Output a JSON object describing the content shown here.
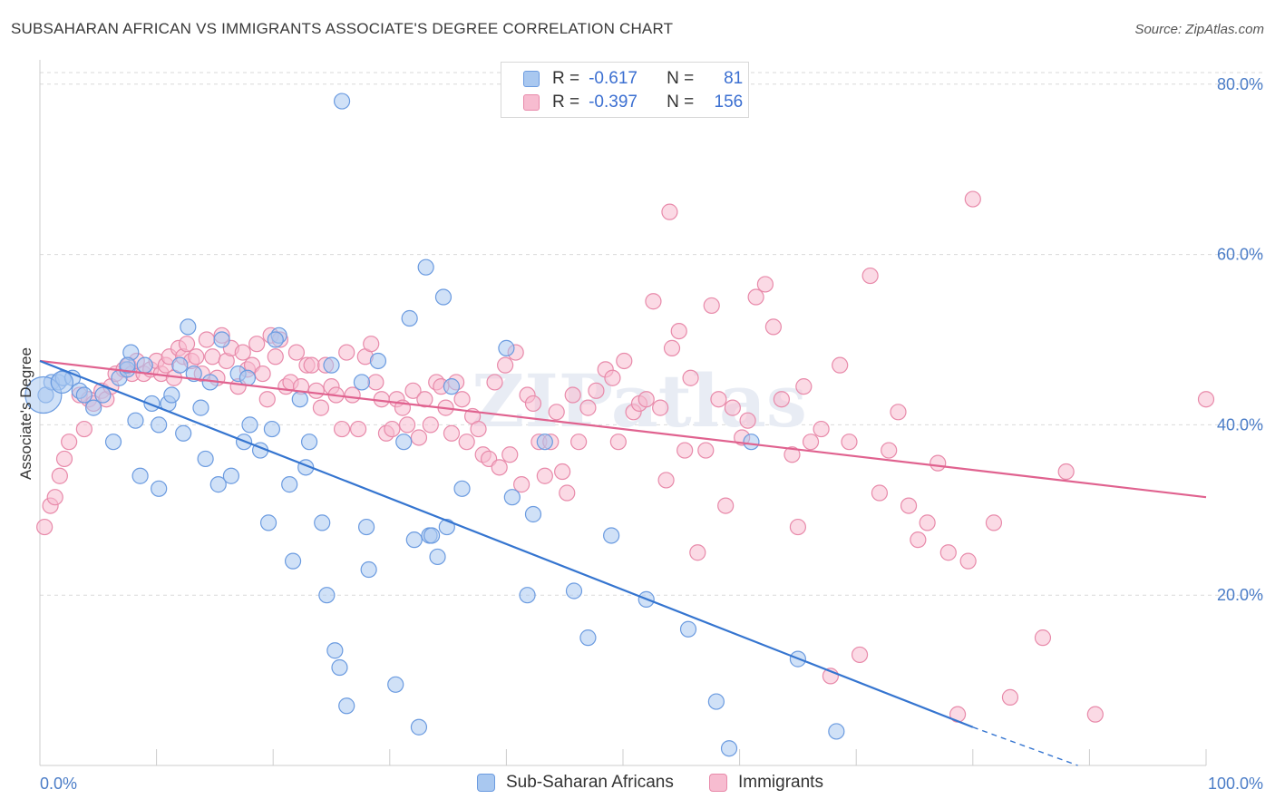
{
  "header": {
    "title": "SUBSAHARAN AFRICAN VS IMMIGRANTS ASSOCIATE'S DEGREE CORRELATION CHART",
    "source": "Source: ZipAtlas.com"
  },
  "legend": {
    "rows": [
      {
        "r_label": "R =",
        "r_value": "-0.617",
        "n_label": "N =",
        "n_value": "81"
      },
      {
        "r_label": "R =",
        "r_value": "-0.397",
        "n_label": "N =",
        "n_value": "156"
      }
    ]
  },
  "colors": {
    "blue_fill": "#a9c8f0",
    "blue_stroke": "#6b9be0",
    "blue_line": "#3575d0",
    "pink_fill": "#f7bcd0",
    "pink_stroke": "#e88aaa",
    "pink_line": "#e0628f",
    "grid": "#d9d9d9",
    "tick": "#4a7cc7"
  },
  "watermark": "ZIPatlas",
  "chart_data": {
    "type": "scatter",
    "title": "SUBSAHARAN AFRICAN VS IMMIGRANTS ASSOCIATE'S DEGREE CORRELATION CHART",
    "xlabel": "",
    "ylabel": "Associate's Degree",
    "xlim": [
      0,
      100
    ],
    "ylim": [
      0,
      82
    ],
    "x_ticks": [
      {
        "value": 0,
        "label": "0.0%"
      },
      {
        "value": 100,
        "label": "100.0%"
      }
    ],
    "y_ticks": [
      {
        "value": 20,
        "label": "20.0%"
      },
      {
        "value": 40,
        "label": "40.0%"
      },
      {
        "value": 60,
        "label": "60.0%"
      },
      {
        "value": 80,
        "label": "80.0%"
      }
    ],
    "grid": true,
    "legend_position": "top-center",
    "series": [
      {
        "name": "Sub-Saharan Africans",
        "r": -0.617,
        "n": 81,
        "trend": {
          "x0": 0,
          "y0": 47.5,
          "x1": 80,
          "y1": 4.5,
          "dashed_to_x": 89,
          "dashed_to_y": 0
        },
        "points": [
          [
            0.5,
            43.5
          ],
          [
            1,
            45
          ],
          [
            1.6,
            45
          ],
          [
            2,
            45.5
          ],
          [
            2.8,
            45.5
          ],
          [
            3.4,
            44
          ],
          [
            3.8,
            43.5
          ],
          [
            4.6,
            42
          ],
          [
            5.4,
            43.5
          ],
          [
            6.3,
            38
          ],
          [
            6.8,
            45.5
          ],
          [
            7.5,
            46.5
          ],
          [
            7.8,
            48.5
          ],
          [
            7.5,
            47
          ],
          [
            8.2,
            40.5
          ],
          [
            8.6,
            34
          ],
          [
            9,
            47
          ],
          [
            9.6,
            42.5
          ],
          [
            10.2,
            40
          ],
          [
            10.2,
            32.5
          ],
          [
            11,
            42.5
          ],
          [
            11.3,
            43.5
          ],
          [
            12,
            47
          ],
          [
            12.3,
            39
          ],
          [
            12.7,
            51.5
          ],
          [
            13.2,
            46
          ],
          [
            13.8,
            42
          ],
          [
            14.2,
            36
          ],
          [
            14.6,
            45
          ],
          [
            15.3,
            33
          ],
          [
            15.6,
            50
          ],
          [
            16.4,
            34
          ],
          [
            17,
            46
          ],
          [
            17.5,
            38
          ],
          [
            17.8,
            45.5
          ],
          [
            18,
            40
          ],
          [
            18.9,
            37
          ],
          [
            19.6,
            28.5
          ],
          [
            19.9,
            39.5
          ],
          [
            20.5,
            50.5
          ],
          [
            20.2,
            50
          ],
          [
            21.4,
            33
          ],
          [
            21.7,
            24
          ],
          [
            22.3,
            43
          ],
          [
            22.8,
            35
          ],
          [
            23.1,
            38
          ],
          [
            24.2,
            28.5
          ],
          [
            24.6,
            20
          ],
          [
            25,
            47
          ],
          [
            25.3,
            13.5
          ],
          [
            25.7,
            11.5
          ],
          [
            25.9,
            78
          ],
          [
            26.3,
            7
          ],
          [
            27.6,
            45
          ],
          [
            28,
            28
          ],
          [
            28.2,
            23
          ],
          [
            29,
            47.5
          ],
          [
            30.5,
            9.5
          ],
          [
            31.2,
            38
          ],
          [
            31.7,
            52.5
          ],
          [
            32.1,
            26.5
          ],
          [
            32.5,
            4.5
          ],
          [
            33.1,
            58.5
          ],
          [
            33.4,
            27
          ],
          [
            33.6,
            27
          ],
          [
            34.1,
            24.5
          ],
          [
            34.6,
            55
          ],
          [
            34.9,
            28
          ],
          [
            35.3,
            44.5
          ],
          [
            36.2,
            32.5
          ],
          [
            40,
            49
          ],
          [
            40.5,
            31.5
          ],
          [
            41.8,
            20
          ],
          [
            42.3,
            29.5
          ],
          [
            43.3,
            38
          ],
          [
            45.8,
            20.5
          ],
          [
            47,
            15
          ],
          [
            49,
            27
          ],
          [
            52,
            19.5
          ],
          [
            55.6,
            16
          ],
          [
            58,
            7.5
          ],
          [
            59.1,
            2
          ],
          [
            61,
            38
          ],
          [
            65,
            12.5
          ],
          [
            68.3,
            4
          ]
        ],
        "big_points": [
          [
            0.3,
            43.5
          ],
          [
            1.9,
            45
          ]
        ]
      },
      {
        "name": "Immigrants",
        "r": -0.397,
        "n": 156,
        "trend": {
          "x0": 0,
          "y0": 47.5,
          "x1": 100,
          "y1": 31.5
        },
        "points": [
          [
            0.4,
            28
          ],
          [
            0.9,
            30.5
          ],
          [
            1.3,
            31.5
          ],
          [
            1.7,
            34
          ],
          [
            2.1,
            36
          ],
          [
            2.5,
            38
          ],
          [
            3.4,
            43.5
          ],
          [
            3.8,
            39.5
          ],
          [
            4.2,
            43
          ],
          [
            4.6,
            42.5
          ],
          [
            5.3,
            44
          ],
          [
            5.7,
            43
          ],
          [
            6.1,
            44.5
          ],
          [
            6.5,
            46
          ],
          [
            7.2,
            46.5
          ],
          [
            7.6,
            47
          ],
          [
            7.9,
            46
          ],
          [
            8.3,
            47.5
          ],
          [
            8.9,
            46
          ],
          [
            9.5,
            46.5
          ],
          [
            10,
            47.5
          ],
          [
            10.4,
            46
          ],
          [
            10.8,
            47
          ],
          [
            11.1,
            48
          ],
          [
            11.5,
            45.5
          ],
          [
            11.9,
            49
          ],
          [
            12.3,
            48
          ],
          [
            12.6,
            49.5
          ],
          [
            13,
            47.5
          ],
          [
            13.4,
            48
          ],
          [
            13.9,
            46
          ],
          [
            14.3,
            50
          ],
          [
            14.8,
            48
          ],
          [
            15.2,
            45.5
          ],
          [
            15.6,
            50.5
          ],
          [
            16,
            47.5
          ],
          [
            16.4,
            49
          ],
          [
            17,
            44.5
          ],
          [
            17.4,
            48.5
          ],
          [
            17.8,
            46.5
          ],
          [
            18.2,
            47
          ],
          [
            18.6,
            49.5
          ],
          [
            19.1,
            46
          ],
          [
            19.5,
            43
          ],
          [
            19.8,
            50.5
          ],
          [
            20.2,
            48
          ],
          [
            20.6,
            50
          ],
          [
            21.1,
            44.5
          ],
          [
            21.5,
            45
          ],
          [
            22,
            48.5
          ],
          [
            22.4,
            44.5
          ],
          [
            22.9,
            47
          ],
          [
            23.3,
            47
          ],
          [
            23.7,
            44
          ],
          [
            24.1,
            42
          ],
          [
            24.5,
            47
          ],
          [
            25,
            44.5
          ],
          [
            25.4,
            43.5
          ],
          [
            25.9,
            39.5
          ],
          [
            26.3,
            48.5
          ],
          [
            26.8,
            43.5
          ],
          [
            27.3,
            39.5
          ],
          [
            27.9,
            48
          ],
          [
            28.4,
            49.5
          ],
          [
            28.8,
            45
          ],
          [
            29.3,
            43
          ],
          [
            29.7,
            39
          ],
          [
            30.2,
            39.5
          ],
          [
            30.6,
            43
          ],
          [
            31.1,
            42
          ],
          [
            31.5,
            40
          ],
          [
            32,
            44
          ],
          [
            32.5,
            38.5
          ],
          [
            33,
            43
          ],
          [
            33.5,
            40
          ],
          [
            34,
            45
          ],
          [
            34.4,
            44.5
          ],
          [
            34.8,
            42
          ],
          [
            35.3,
            39
          ],
          [
            35.7,
            45
          ],
          [
            36.2,
            43
          ],
          [
            36.6,
            38
          ],
          [
            37.1,
            41
          ],
          [
            37.6,
            39.5
          ],
          [
            38,
            36.5
          ],
          [
            38.5,
            36
          ],
          [
            39,
            45
          ],
          [
            39.4,
            35
          ],
          [
            39.9,
            47
          ],
          [
            40.3,
            36.5
          ],
          [
            40.8,
            48.5
          ],
          [
            41.3,
            33
          ],
          [
            41.8,
            43.5
          ],
          [
            42.3,
            42.5
          ],
          [
            42.8,
            38
          ],
          [
            43.3,
            34
          ],
          [
            43.8,
            38
          ],
          [
            44.3,
            41.5
          ],
          [
            44.8,
            34.5
          ],
          [
            45.2,
            32
          ],
          [
            45.7,
            43.5
          ],
          [
            46.2,
            38
          ],
          [
            47,
            42
          ],
          [
            47.7,
            44
          ],
          [
            48.5,
            46.5
          ],
          [
            49.1,
            45.5
          ],
          [
            49.6,
            38
          ],
          [
            50.1,
            47.5
          ],
          [
            50.9,
            41.5
          ],
          [
            51.4,
            42.5
          ],
          [
            52,
            43
          ],
          [
            52.6,
            54.5
          ],
          [
            53.2,
            42
          ],
          [
            53.7,
            33.5
          ],
          [
            54.2,
            49
          ],
          [
            54.8,
            51
          ],
          [
            55.3,
            37
          ],
          [
            55.8,
            45.5
          ],
          [
            56.4,
            25
          ],
          [
            57.1,
            37
          ],
          [
            57.6,
            54
          ],
          [
            58.2,
            43
          ],
          [
            58.8,
            30.5
          ],
          [
            59.4,
            42
          ],
          [
            60.2,
            38.5
          ],
          [
            60.7,
            40.5
          ],
          [
            61.4,
            55
          ],
          [
            62.2,
            56.5
          ],
          [
            62.9,
            51.5
          ],
          [
            63.6,
            43
          ],
          [
            64.5,
            36.5
          ],
          [
            65,
            28
          ],
          [
            65.5,
            44.5
          ],
          [
            66.1,
            38
          ],
          [
            67,
            39.5
          ],
          [
            67.8,
            10.5
          ],
          [
            68.6,
            47
          ],
          [
            69.4,
            38
          ],
          [
            70.3,
            13
          ],
          [
            71.2,
            57.5
          ],
          [
            72,
            32
          ],
          [
            72.8,
            37
          ],
          [
            73.6,
            41.5
          ],
          [
            74.5,
            30.5
          ],
          [
            75.3,
            26.5
          ],
          [
            76.1,
            28.5
          ],
          [
            77,
            35.5
          ],
          [
            77.9,
            25
          ],
          [
            78.7,
            6
          ],
          [
            79.6,
            24
          ],
          [
            80,
            66.5
          ],
          [
            81.8,
            28.5
          ],
          [
            83.2,
            8
          ],
          [
            86,
            15
          ],
          [
            88,
            34.5
          ],
          [
            90.5,
            6
          ],
          [
            100,
            43
          ],
          [
            54,
            65
          ]
        ]
      }
    ]
  },
  "bottom_legend": [
    {
      "label": "Sub-Saharan Africans"
    },
    {
      "label": "Immigrants"
    }
  ]
}
